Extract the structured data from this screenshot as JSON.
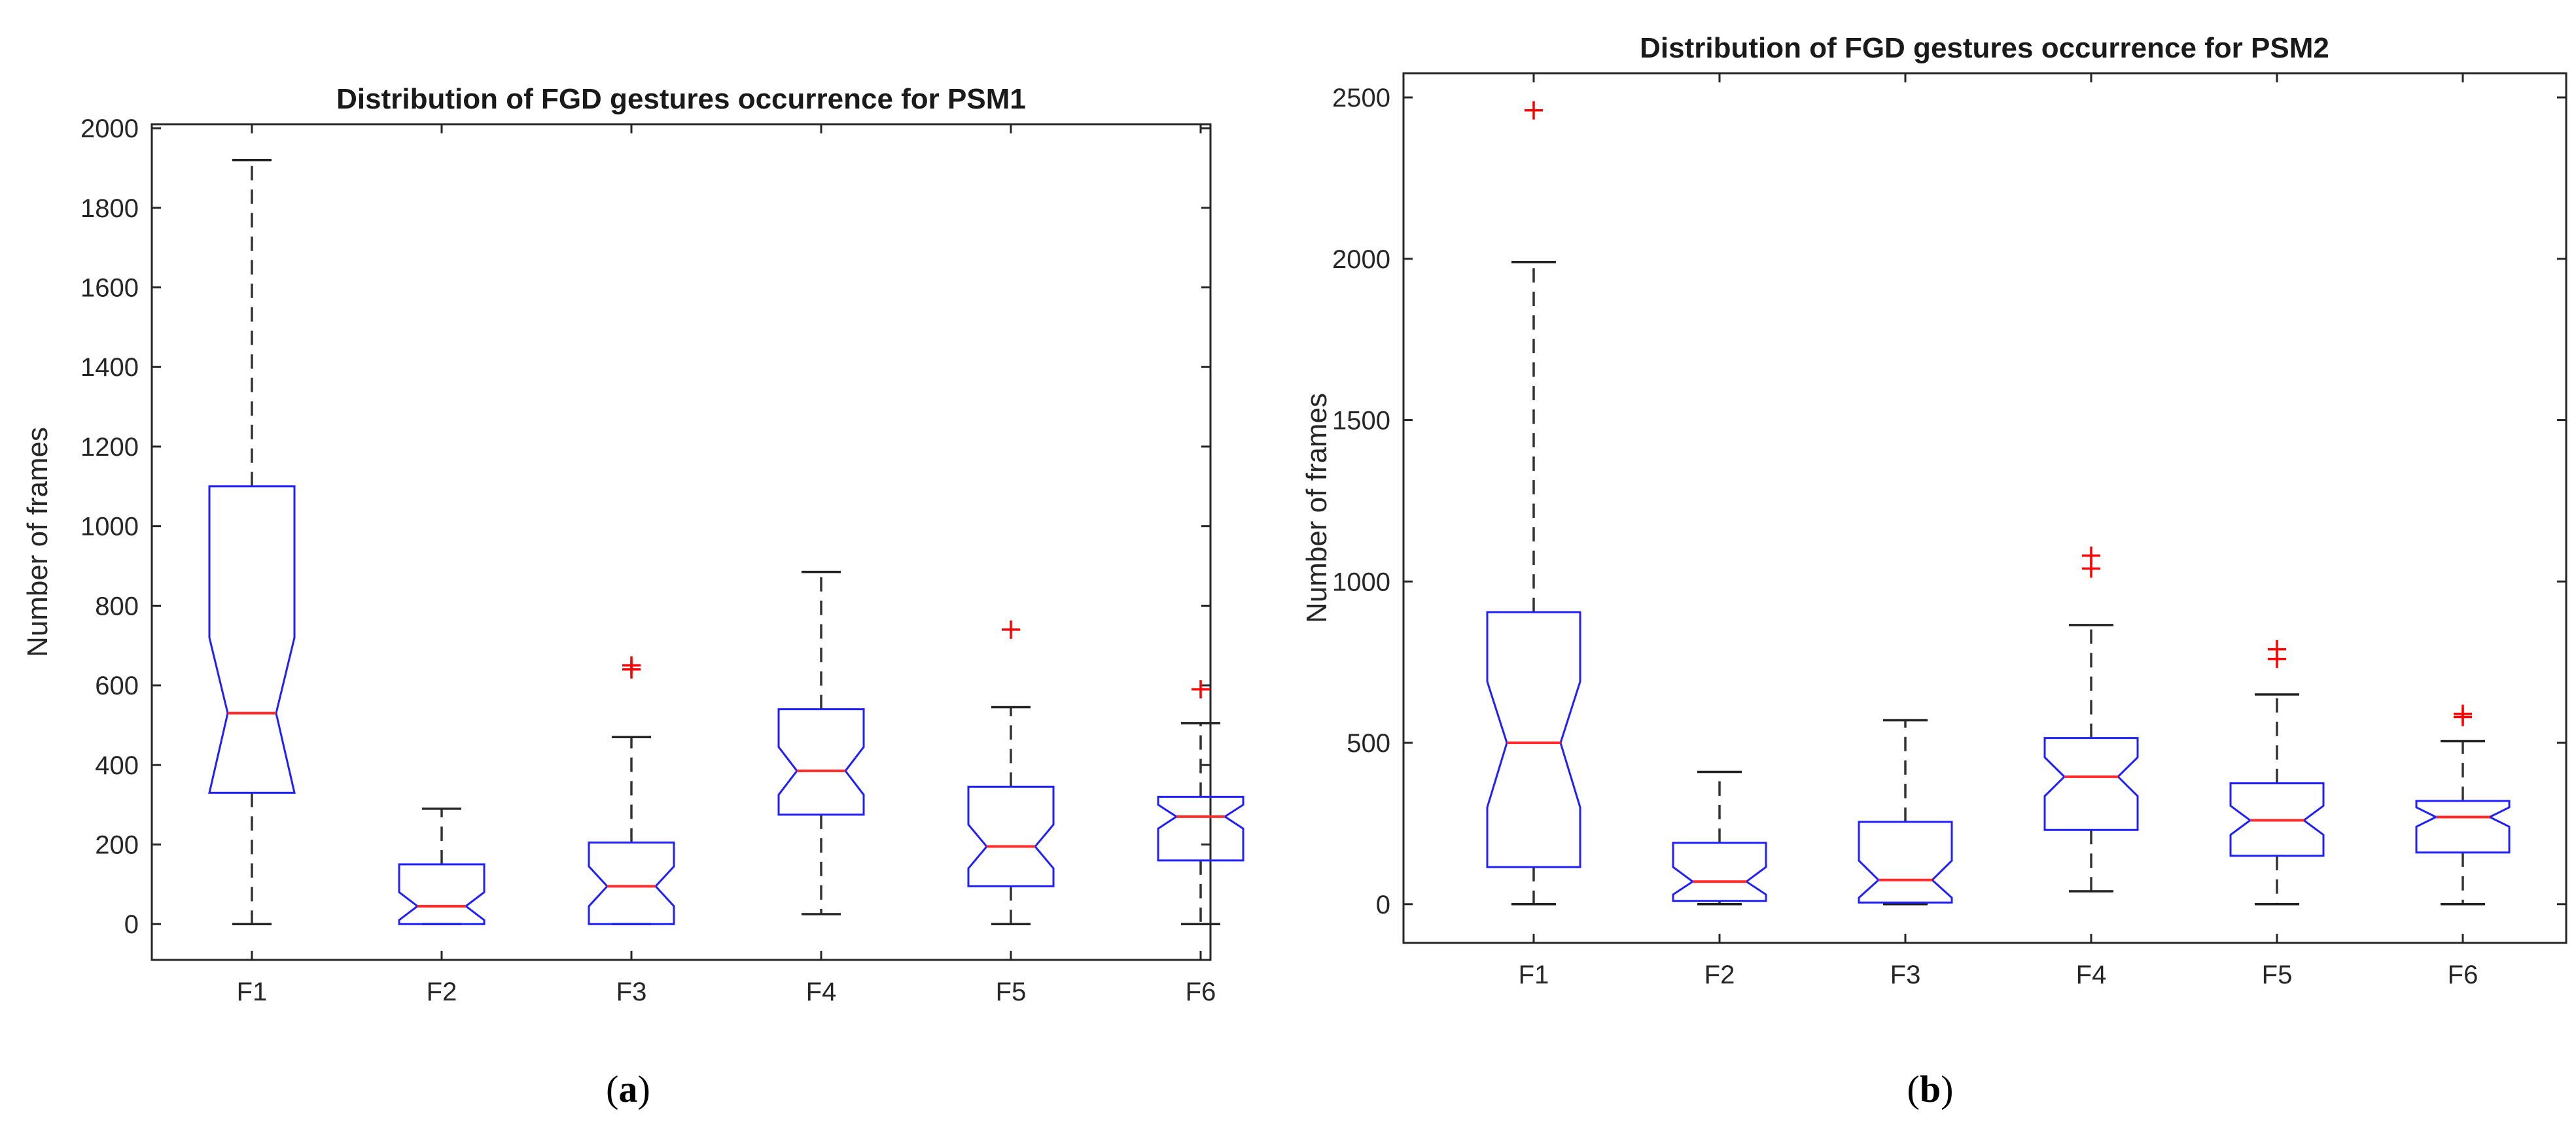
{
  "chart_data": [
    {
      "type": "boxplot",
      "panel_label": "a",
      "title": "Distribution of FGD gestures occurrence for PSM1",
      "ylabel": "Number of frames",
      "xlabel": "",
      "categories": [
        "F1",
        "F2",
        "F3",
        "F4",
        "F5",
        "F6"
      ],
      "ylim": [
        -90,
        2010
      ],
      "yticks": [
        0,
        200,
        400,
        600,
        800,
        1000,
        1200,
        1400,
        1600,
        1800,
        2000
      ],
      "notched": true,
      "boxes": [
        {
          "category": "F1",
          "whisker_low": 0,
          "q1": 330,
          "median": 530,
          "q3": 1100,
          "whisker_high": 1920,
          "notch_low": 330,
          "notch_high": 720,
          "outliers": []
        },
        {
          "category": "F2",
          "whisker_low": 0,
          "q1": 0,
          "median": 45,
          "q3": 150,
          "whisker_high": 290,
          "notch_low": 10,
          "notch_high": 80,
          "outliers": []
        },
        {
          "category": "F3",
          "whisker_low": 0,
          "q1": 0,
          "median": 95,
          "q3": 205,
          "whisker_high": 470,
          "notch_low": 45,
          "notch_high": 145,
          "outliers": [
            640,
            650
          ]
        },
        {
          "category": "F4",
          "whisker_low": 25,
          "q1": 275,
          "median": 385,
          "q3": 540,
          "whisker_high": 885,
          "notch_low": 325,
          "notch_high": 445,
          "outliers": []
        },
        {
          "category": "F5",
          "whisker_low": 0,
          "q1": 95,
          "median": 195,
          "q3": 345,
          "whisker_high": 545,
          "notch_low": 140,
          "notch_high": 250,
          "outliers": [
            740
          ]
        },
        {
          "category": "F6",
          "whisker_low": 0,
          "q1": 160,
          "median": 270,
          "q3": 320,
          "whisker_high": 505,
          "notch_low": 240,
          "notch_high": 300,
          "outliers": [
            590
          ]
        }
      ]
    },
    {
      "type": "boxplot",
      "panel_label": "b",
      "title": "Distribution of FGD gestures occurrence for PSM2",
      "ylabel": "Number of frames",
      "xlabel": "",
      "categories": [
        "F1",
        "F2",
        "F3",
        "F4",
        "F5",
        "F6"
      ],
      "ylim": [
        -120,
        2575
      ],
      "yticks": [
        0,
        500,
        1000,
        1500,
        2000,
        2500
      ],
      "notched": true,
      "boxes": [
        {
          "category": "F1",
          "whisker_low": 0,
          "q1": 115,
          "median": 500,
          "q3": 905,
          "whisker_high": 1990,
          "notch_low": 300,
          "notch_high": 690,
          "outliers": [
            2460
          ]
        },
        {
          "category": "F2",
          "whisker_low": 0,
          "q1": 10,
          "median": 70,
          "q3": 190,
          "whisker_high": 410,
          "notch_low": 30,
          "notch_high": 115,
          "outliers": []
        },
        {
          "category": "F3",
          "whisker_low": 0,
          "q1": 5,
          "median": 75,
          "q3": 255,
          "whisker_high": 570,
          "notch_low": 20,
          "notch_high": 135,
          "outliers": []
        },
        {
          "category": "F4",
          "whisker_low": 40,
          "q1": 230,
          "median": 395,
          "q3": 515,
          "whisker_high": 865,
          "notch_low": 335,
          "notch_high": 455,
          "outliers": [
            1040,
            1080
          ]
        },
        {
          "category": "F5",
          "whisker_low": 0,
          "q1": 150,
          "median": 260,
          "q3": 375,
          "whisker_high": 650,
          "notch_low": 215,
          "notch_high": 305,
          "outliers": [
            760,
            790
          ]
        },
        {
          "category": "F6",
          "whisker_low": 0,
          "q1": 160,
          "median": 270,
          "q3": 320,
          "whisker_high": 505,
          "notch_low": 240,
          "notch_high": 300,
          "outliers": [
            580,
            590
          ]
        }
      ]
    }
  ],
  "captions": [
    "(a)",
    "(b)"
  ]
}
